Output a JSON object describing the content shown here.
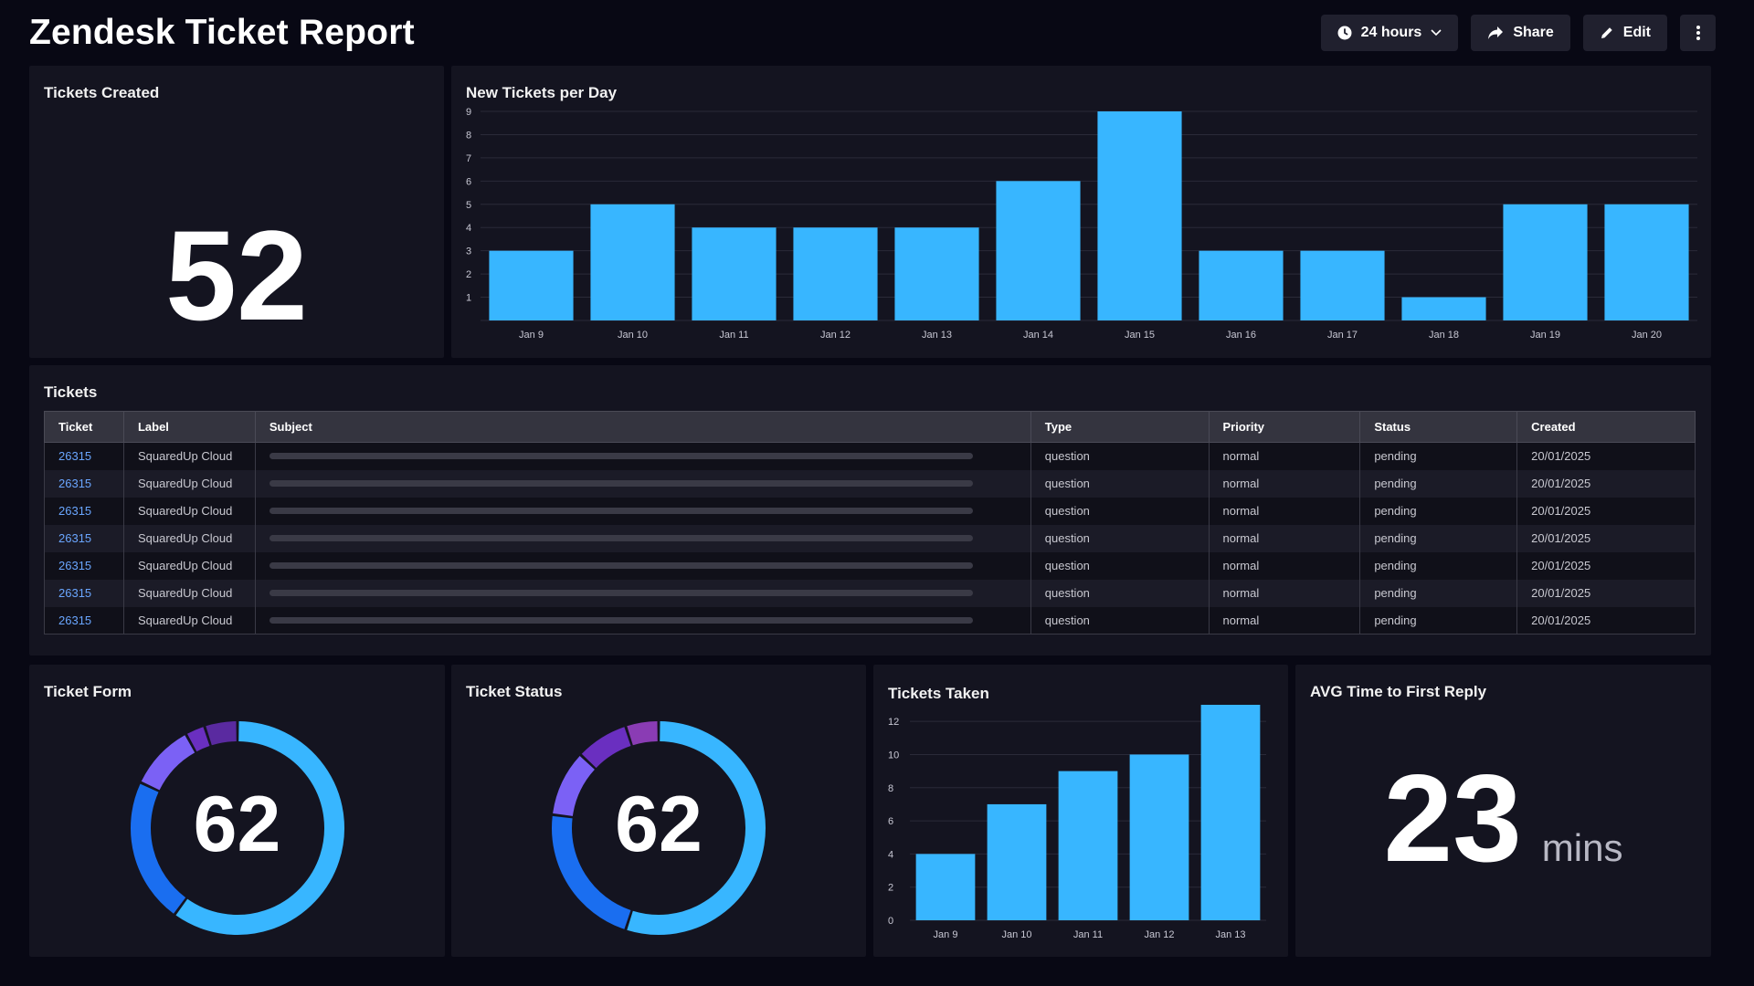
{
  "header": {
    "title": "Zendesk Ticket Report",
    "timeframe_label": "24 hours",
    "share_label": "Share",
    "edit_label": "Edit"
  },
  "tickets_created": {
    "title": "Tickets Created",
    "value": "52"
  },
  "new_tickets_chart": {
    "title": "New Tickets per Day",
    "chart_data": {
      "type": "bar",
      "categories": [
        "Jan 9",
        "Jan 10",
        "Jan 11",
        "Jan 12",
        "Jan 13",
        "Jan 14",
        "Jan 15",
        "Jan 16",
        "Jan 17",
        "Jan 18",
        "Jan 19",
        "Jan 20"
      ],
      "values": [
        3,
        5,
        4,
        4,
        4,
        6,
        9,
        3,
        3,
        1,
        5,
        5
      ],
      "yticks": [
        1,
        2,
        3,
        4,
        5,
        6,
        7,
        8,
        9
      ],
      "ylim": [
        0,
        9
      ],
      "grid": true,
      "color": "#38b6ff"
    }
  },
  "tickets_table": {
    "title": "Tickets",
    "columns": [
      "Ticket",
      "Label",
      "Subject",
      "Type",
      "Priority",
      "Status",
      "Created"
    ],
    "rows": [
      {
        "ticket": "26315",
        "label": "SquaredUp Cloud",
        "type": "question",
        "priority": "normal",
        "status": "pending",
        "created": "20/01/2025"
      },
      {
        "ticket": "26315",
        "label": "SquaredUp Cloud",
        "type": "question",
        "priority": "normal",
        "status": "pending",
        "created": "20/01/2025"
      },
      {
        "ticket": "26315",
        "label": "SquaredUp Cloud",
        "type": "question",
        "priority": "normal",
        "status": "pending",
        "created": "20/01/2025"
      },
      {
        "ticket": "26315",
        "label": "SquaredUp Cloud",
        "type": "question",
        "priority": "normal",
        "status": "pending",
        "created": "20/01/2025"
      },
      {
        "ticket": "26315",
        "label": "SquaredUp Cloud",
        "type": "question",
        "priority": "normal",
        "status": "pending",
        "created": "20/01/2025"
      },
      {
        "ticket": "26315",
        "label": "SquaredUp Cloud",
        "type": "question",
        "priority": "normal",
        "status": "pending",
        "created": "20/01/2025"
      },
      {
        "ticket": "26315",
        "label": "SquaredUp Cloud",
        "type": "question",
        "priority": "normal",
        "status": "pending",
        "created": "20/01/2025"
      }
    ]
  },
  "ticket_form": {
    "title": "Ticket Form",
    "value": "62",
    "chart_data": {
      "type": "pie",
      "slices": [
        {
          "value": 0.6,
          "color": "#38b6ff"
        },
        {
          "value": 0.22,
          "color": "#1a6ef0"
        },
        {
          "value": 0.1,
          "color": "#7b61f5"
        },
        {
          "value": 0.03,
          "color": "#6a2fc0"
        },
        {
          "value": 0.05,
          "color": "#5a2aa0"
        }
      ]
    }
  },
  "ticket_status": {
    "title": "Ticket Status",
    "value": "62",
    "chart_data": {
      "type": "pie",
      "slices": [
        {
          "value": 0.55,
          "color": "#38b6ff"
        },
        {
          "value": 0.22,
          "color": "#1a6ef0"
        },
        {
          "value": 0.1,
          "color": "#7b61f5"
        },
        {
          "value": 0.08,
          "color": "#6a2fc0"
        },
        {
          "value": 0.05,
          "color": "#8a3cb4"
        }
      ]
    }
  },
  "tickets_taken": {
    "title": "Tickets Taken",
    "chart_data": {
      "type": "bar",
      "categories": [
        "Jan 9",
        "Jan 10",
        "Jan 11",
        "Jan 12",
        "Jan 13"
      ],
      "values": [
        4,
        7,
        9,
        10,
        13
      ],
      "yticks": [
        0,
        2,
        4,
        6,
        8,
        10,
        12
      ],
      "ylim": [
        0,
        13
      ],
      "grid": true,
      "color": "#38b6ff"
    }
  },
  "avg_first_reply": {
    "title": "AVG Time to First Reply",
    "value": "23",
    "unit": "mins"
  }
}
